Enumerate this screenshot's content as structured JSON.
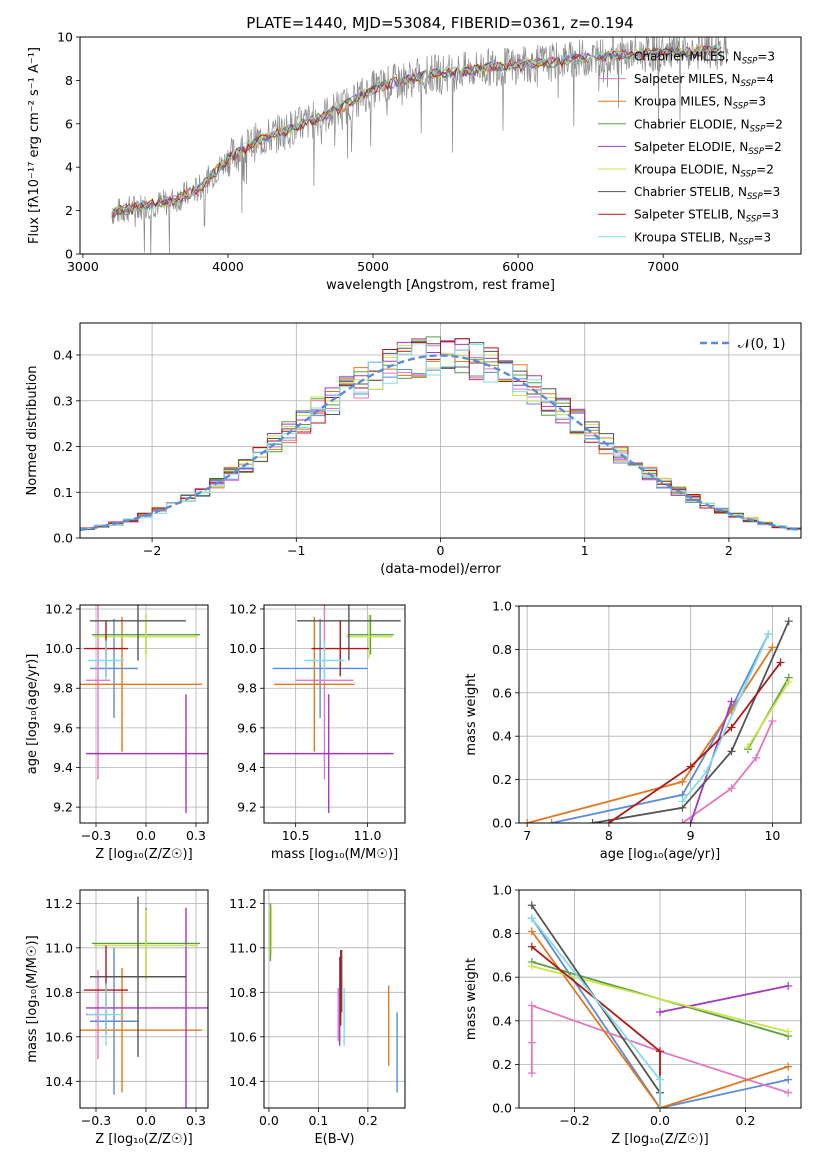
{
  "figure_title": "PLATE=1440, MJD=53084, FIBERID=0361, z=0.194",
  "colors": {
    "chabrier_miles": "#5b8bd9",
    "salpeter_miles": "#e377c2",
    "kroupa_miles": "#e07820",
    "chabrier_elodie": "#5aa043",
    "salpeter_elodie": "#a23ac0",
    "kroupa_elodie": "#c8e64c",
    "chabrier_stelib": "#555555",
    "salpeter_stelib": "#b01818",
    "kroupa_stelib": "#80dde8",
    "data_spectrum": "#8c8c8c",
    "normal_curve": "#5b8bd9",
    "grid": "#b0b0b0"
  },
  "chart_data": [
    {
      "id": "spectrum",
      "type": "line",
      "title": "PLATE=1440, MJD=53084, FIBERID=0361, z=0.194",
      "xlabel": "wavelength [Angstrom, rest frame]",
      "ylabel": "Flux [fλ10⁻¹⁷ erg cm⁻² s⁻¹ A⁻¹]",
      "xlim": [
        2980,
        7950
      ],
      "ylim": [
        0,
        10
      ],
      "xticks": [
        3000,
        4000,
        5000,
        6000,
        7000
      ],
      "yticks": [
        0,
        2,
        4,
        6,
        8,
        10
      ],
      "grid": false,
      "legend_position": "top-right",
      "legend": [
        "Chabrier MILES, N_SSP=3",
        "Salpeter MILES, N_SSP=4",
        "Kroupa MILES, N_SSP=3",
        "Chabrier ELODIE, N_SSP=2",
        "Salpeter ELODIE, N_SSP=2",
        "Kroupa ELODIE, N_SSP=2",
        "Chabrier STELIB, N_SSP=3",
        "Salpeter STELIB, N_SSP=3",
        "Kroupa STELIB, N_SSP=3"
      ],
      "legend_labels": [
        {
          "name": "Chabrier MILES, N",
          "sub": "SSP",
          "tail": "=3",
          "color": "#5b8bd9"
        },
        {
          "name": "Salpeter MILES, N",
          "sub": "SSP",
          "tail": "=4",
          "color": "#e377c2"
        },
        {
          "name": "Kroupa MILES, N",
          "sub": "SSP",
          "tail": "=3",
          "color": "#e07820"
        },
        {
          "name": "Chabrier ELODIE, N",
          "sub": "SSP",
          "tail": "=2",
          "color": "#5aa043"
        },
        {
          "name": "Salpeter ELODIE, N",
          "sub": "SSP",
          "tail": "=2",
          "color": "#a23ac0"
        },
        {
          "name": "Kroupa ELODIE, N",
          "sub": "SSP",
          "tail": "=2",
          "color": "#c8e64c"
        },
        {
          "name": "Chabrier STELIB, N",
          "sub": "SSP",
          "tail": "=3",
          "color": "#555555"
        },
        {
          "name": "Salpeter STELIB, N",
          "sub": "SSP",
          "tail": "=3",
          "color": "#b01818"
        },
        {
          "name": "Kroupa STELIB, N",
          "sub": "SSP",
          "tail": "=3",
          "color": "#80dde8"
        }
      ],
      "continuum": {
        "x": [
          3200,
          3400,
          3600,
          3800,
          4000,
          4200,
          4400,
          4600,
          4800,
          5000,
          5200,
          5400,
          5600,
          5800,
          6000,
          6200,
          6400,
          6600,
          6800,
          7000,
          7200,
          7400
        ],
        "y": [
          1.9,
          2.2,
          2.4,
          3.0,
          4.4,
          5.2,
          5.7,
          6.2,
          6.8,
          7.6,
          8.0,
          8.3,
          8.4,
          8.6,
          8.7,
          8.8,
          9.0,
          9.1,
          9.2,
          9.3,
          9.3,
          9.4
        ]
      }
    },
    {
      "id": "residual_histogram",
      "type": "histogram",
      "xlabel": "(data-model)/error",
      "ylabel": "Normed distribution",
      "xlim": [
        -2.5,
        2.5
      ],
      "ylim": [
        0,
        0.47
      ],
      "xticks": [
        -2,
        -1,
        0,
        1,
        2
      ],
      "yticks": [
        0.0,
        0.1,
        0.2,
        0.3,
        0.4
      ],
      "grid": true,
      "legend_position": "top-right",
      "legend": [
        "𝒩(0, 1)"
      ],
      "bin_width": 0.1,
      "bin_start": -2.5,
      "reference_curve": "normal(0,1) density"
    },
    {
      "id": "age_vs_Z",
      "type": "errorbar",
      "xlabel": "Z [log₁₀(Z/Z☉)]",
      "ylabel": "age [log₁₀(age/yr)]",
      "xlim": [
        -0.33,
        0.31
      ],
      "ylim": [
        9.12,
        10.22
      ],
      "xticks": [
        -0.25,
        0.0,
        0.25
      ],
      "yticks": [
        9.2,
        9.4,
        9.6,
        9.8,
        10.0,
        10.2
      ],
      "grid": true,
      "points": [
        {
          "series": "Chabrier MILES",
          "x": -0.16,
          "xerr": 0.12,
          "y": 9.9,
          "yerr": 0.25
        },
        {
          "series": "Salpeter MILES",
          "x": -0.24,
          "xerr": 0.06,
          "y": 9.84,
          "yerr": 0.5
        },
        {
          "series": "Kroupa MILES",
          "x": -0.12,
          "xerr": 0.4,
          "y": 9.82,
          "yerr": 0.34
        },
        {
          "series": "Chabrier ELODIE",
          "x": 0.0,
          "xerr": 0.27,
          "y": 10.07,
          "yerr": 0.1
        },
        {
          "series": "Salpeter ELODIE",
          "x": 0.2,
          "xerr": 0.5,
          "y": 9.47,
          "yerr": 0.3
        },
        {
          "series": "Kroupa ELODIE",
          "x": 0.0,
          "xerr": 0.26,
          "y": 10.06,
          "yerr": 0.11
        },
        {
          "series": "Chabrier STELIB",
          "x": -0.04,
          "xerr": 0.24,
          "y": 10.14,
          "yerr": 0.2
        },
        {
          "series": "Salpeter STELIB",
          "x": -0.2,
          "xerr": 0.11,
          "y": 10.0,
          "yerr": 0.14
        },
        {
          "series": "Kroupa STELIB",
          "x": -0.2,
          "xerr": 0.09,
          "y": 9.94,
          "yerr": 0.1
        }
      ]
    },
    {
      "id": "age_vs_mass",
      "type": "errorbar",
      "xlabel": "mass [log₁₀(M/M☉)]",
      "ylabel": "",
      "xlim": [
        10.28,
        11.26
      ],
      "ylim": [
        9.12,
        10.22
      ],
      "xticks": [
        10.5,
        11.0
      ],
      "yticks": [
        9.2,
        9.4,
        9.6,
        9.8,
        10.0,
        10.2
      ],
      "grid": true,
      "points": [
        {
          "series": "Chabrier MILES",
          "x": 10.67,
          "xerr": 0.33,
          "y": 9.9,
          "yerr": 0.25
        },
        {
          "series": "Salpeter MILES",
          "x": 10.7,
          "xerr": 0.2,
          "y": 9.84,
          "yerr": 0.5
        },
        {
          "series": "Kroupa MILES",
          "x": 10.63,
          "xerr": 0.28,
          "y": 9.82,
          "yerr": 0.34
        },
        {
          "series": "Chabrier ELODIE",
          "x": 11.02,
          "xerr": 0.16,
          "y": 10.07,
          "yerr": 0.1
        },
        {
          "series": "Salpeter ELODIE",
          "x": 10.73,
          "xerr": 0.45,
          "y": 9.47,
          "yerr": 0.3
        },
        {
          "series": "Kroupa ELODIE",
          "x": 11.01,
          "xerr": 0.16,
          "y": 10.06,
          "yerr": 0.11
        },
        {
          "series": "Chabrier STELIB",
          "x": 10.87,
          "xerr": 0.36,
          "y": 10.14,
          "yerr": 0.2
        },
        {
          "series": "Salpeter STELIB",
          "x": 10.81,
          "xerr": 0.2,
          "y": 10.0,
          "yerr": 0.14
        },
        {
          "series": "Kroupa STELIB",
          "x": 10.7,
          "xerr": 0.14,
          "y": 9.94,
          "yerr": 0.1
        }
      ]
    },
    {
      "id": "massweight_vs_age",
      "type": "line",
      "xlabel": "age [log₁₀(age/yr)]",
      "ylabel": "mass weight",
      "xlim": [
        6.9,
        10.35
      ],
      "ylim": [
        0,
        1.0
      ],
      "xticks": [
        7,
        8,
        9,
        10
      ],
      "yticks": [
        0.0,
        0.2,
        0.4,
        0.6,
        0.8,
        1.0
      ],
      "grid": true,
      "series": [
        {
          "name": "Chabrier MILES",
          "x": [
            7.3,
            8.9,
            9.5,
            9.95
          ],
          "y": [
            0.0,
            0.13,
            0.53,
            0.87
          ]
        },
        {
          "name": "Salpeter MILES",
          "x": [
            8.9,
            9.5,
            9.8,
            10.0
          ],
          "y": [
            0.0,
            0.16,
            0.3,
            0.47
          ]
        },
        {
          "name": "Kroupa MILES",
          "x": [
            7.0,
            8.9,
            9.5,
            10.0
          ],
          "y": [
            0.0,
            0.19,
            0.52,
            0.81
          ]
        },
        {
          "name": "Chabrier ELODIE",
          "x": [
            9.7,
            10.2
          ],
          "y": [
            0.34,
            0.67
          ]
        },
        {
          "name": "Salpeter ELODIE",
          "x": [
            9.0,
            9.5
          ],
          "y": [
            0.0,
            0.56
          ]
        },
        {
          "name": "Kroupa ELODIE",
          "x": [
            9.7,
            10.2
          ],
          "y": [
            0.35,
            0.65
          ]
        },
        {
          "name": "Chabrier STELIB",
          "x": [
            7.8,
            8.9,
            9.5,
            10.2
          ],
          "y": [
            0.0,
            0.07,
            0.33,
            0.93
          ]
        },
        {
          "name": "Salpeter STELIB",
          "x": [
            8.0,
            9.0,
            9.5,
            10.1
          ],
          "y": [
            0.0,
            0.26,
            0.44,
            0.74
          ]
        },
        {
          "name": "Kroupa STELIB",
          "x": [
            8.9,
            9.2,
            9.95
          ],
          "y": [
            0.1,
            0.24,
            0.87
          ]
        }
      ]
    },
    {
      "id": "mass_vs_Z",
      "type": "errorbar",
      "xlabel": "Z [log₁₀(Z/Z☉)]",
      "ylabel": "mass [log₁₀(M/M☉)]",
      "xlim": [
        -0.33,
        0.31
      ],
      "ylim": [
        10.28,
        11.26
      ],
      "xticks": [
        -0.25,
        0.0,
        0.25
      ],
      "yticks": [
        10.4,
        10.6,
        10.8,
        11.0,
        11.2
      ],
      "grid": true,
      "points": [
        {
          "series": "Chabrier MILES",
          "x": -0.16,
          "xerr": 0.12,
          "y": 10.67,
          "yerr": 0.33
        },
        {
          "series": "Salpeter MILES",
          "x": -0.24,
          "xerr": 0.06,
          "y": 10.7,
          "yerr": 0.2
        },
        {
          "series": "Kroupa MILES",
          "x": -0.12,
          "xerr": 0.4,
          "y": 10.63,
          "yerr": 0.28
        },
        {
          "series": "Chabrier ELODIE",
          "x": 0.0,
          "xerr": 0.27,
          "y": 11.02,
          "yerr": 0.16
        },
        {
          "series": "Salpeter ELODIE",
          "x": 0.2,
          "xerr": 0.5,
          "y": 10.73,
          "yerr": 0.45
        },
        {
          "series": "Kroupa ELODIE",
          "x": 0.0,
          "xerr": 0.26,
          "y": 11.01,
          "yerr": 0.16
        },
        {
          "series": "Chabrier STELIB",
          "x": -0.04,
          "xerr": 0.24,
          "y": 10.87,
          "yerr": 0.36
        },
        {
          "series": "Salpeter STELIB",
          "x": -0.2,
          "xerr": 0.11,
          "y": 10.81,
          "yerr": 0.2
        },
        {
          "series": "Kroupa STELIB",
          "x": -0.2,
          "xerr": 0.09,
          "y": 10.7,
          "yerr": 0.14
        }
      ]
    },
    {
      "id": "mass_vs_ebv",
      "type": "errorbar",
      "xlabel": "E(B-V)",
      "ylabel": "",
      "xlim": [
        -0.01,
        0.275
      ],
      "ylim": [
        10.28,
        11.26
      ],
      "xticks": [
        0.0,
        0.1,
        0.2
      ],
      "yticks": [
        10.4,
        10.6,
        10.8,
        11.0,
        11.2
      ],
      "grid": true,
      "points": [
        {
          "series": "Chabrier MILES",
          "x": 0.259,
          "xerr": 0.0,
          "y": 10.53,
          "yerr": 0.18
        },
        {
          "series": "Salpeter MILES",
          "x": 0.14,
          "xerr": 0.0,
          "y": 10.7,
          "yerr": 0.12
        },
        {
          "series": "Kroupa MILES",
          "x": 0.242,
          "xerr": 0.0,
          "y": 10.65,
          "yerr": 0.18
        },
        {
          "series": "Chabrier ELODIE",
          "x": 0.003,
          "xerr": 0.0,
          "y": 11.07,
          "yerr": 0.13
        },
        {
          "series": "Salpeter ELODIE",
          "x": 0.143,
          "xerr": 0.0,
          "y": 10.76,
          "yerr": 0.2
        },
        {
          "series": "Kroupa ELODIE",
          "x": 0.005,
          "xerr": 0.0,
          "y": 11.08,
          "yerr": 0.11
        },
        {
          "series": "Chabrier STELIB",
          "x": 0.147,
          "xerr": 0.0,
          "y": 10.85,
          "yerr": 0.14
        },
        {
          "series": "Salpeter STELIB",
          "x": 0.145,
          "xerr": 0.0,
          "y": 10.82,
          "yerr": 0.17
        },
        {
          "series": "Kroupa STELIB",
          "x": 0.152,
          "xerr": 0.0,
          "y": 10.69,
          "yerr": 0.13
        }
      ]
    },
    {
      "id": "massweight_vs_Z",
      "type": "line",
      "xlabel": "Z [log₁₀(Z/Z☉)]",
      "ylabel": "mass weight",
      "xlim": [
        -0.33,
        0.33
      ],
      "ylim": [
        0,
        1.0
      ],
      "xticks": [
        -0.2,
        0.0,
        0.2
      ],
      "yticks": [
        0.0,
        0.2,
        0.4,
        0.6,
        0.8,
        1.0
      ],
      "grid": true,
      "series": [
        {
          "name": "Chabrier MILES",
          "x": [
            -0.3,
            0.0,
            0.3
          ],
          "y": [
            0.87,
            0.0,
            0.13
          ]
        },
        {
          "name": "Salpeter MILES",
          "x": [
            -0.3,
            -0.3,
            -0.3,
            0.0,
            0.3
          ],
          "y": [
            0.16,
            0.3,
            0.47,
            0.26,
            0.07
          ]
        },
        {
          "name": "Kroupa MILES",
          "x": [
            -0.3,
            0.0,
            0.3
          ],
          "y": [
            0.81,
            0.0,
            0.19
          ]
        },
        {
          "name": "Chabrier ELODIE",
          "x": [
            -0.3,
            0.3
          ],
          "y": [
            0.67,
            0.33
          ]
        },
        {
          "name": "Salpeter ELODIE",
          "x": [
            0.0,
            0.3
          ],
          "y": [
            0.44,
            0.56
          ]
        },
        {
          "name": "Kroupa ELODIE",
          "x": [
            -0.3,
            0.3
          ],
          "y": [
            0.65,
            0.35
          ]
        },
        {
          "name": "Chabrier STELIB",
          "x": [
            -0.3,
            0.0,
            0.0
          ],
          "y": [
            0.93,
            0.07,
            0.0
          ]
        },
        {
          "name": "Salpeter STELIB",
          "x": [
            -0.3,
            0.0,
            0.0
          ],
          "y": [
            0.74,
            0.26,
            0.0
          ]
        },
        {
          "name": "Kroupa STELIB",
          "x": [
            -0.3,
            0.0,
            0.0
          ],
          "y": [
            0.87,
            0.13,
            0.0
          ]
        }
      ]
    }
  ]
}
